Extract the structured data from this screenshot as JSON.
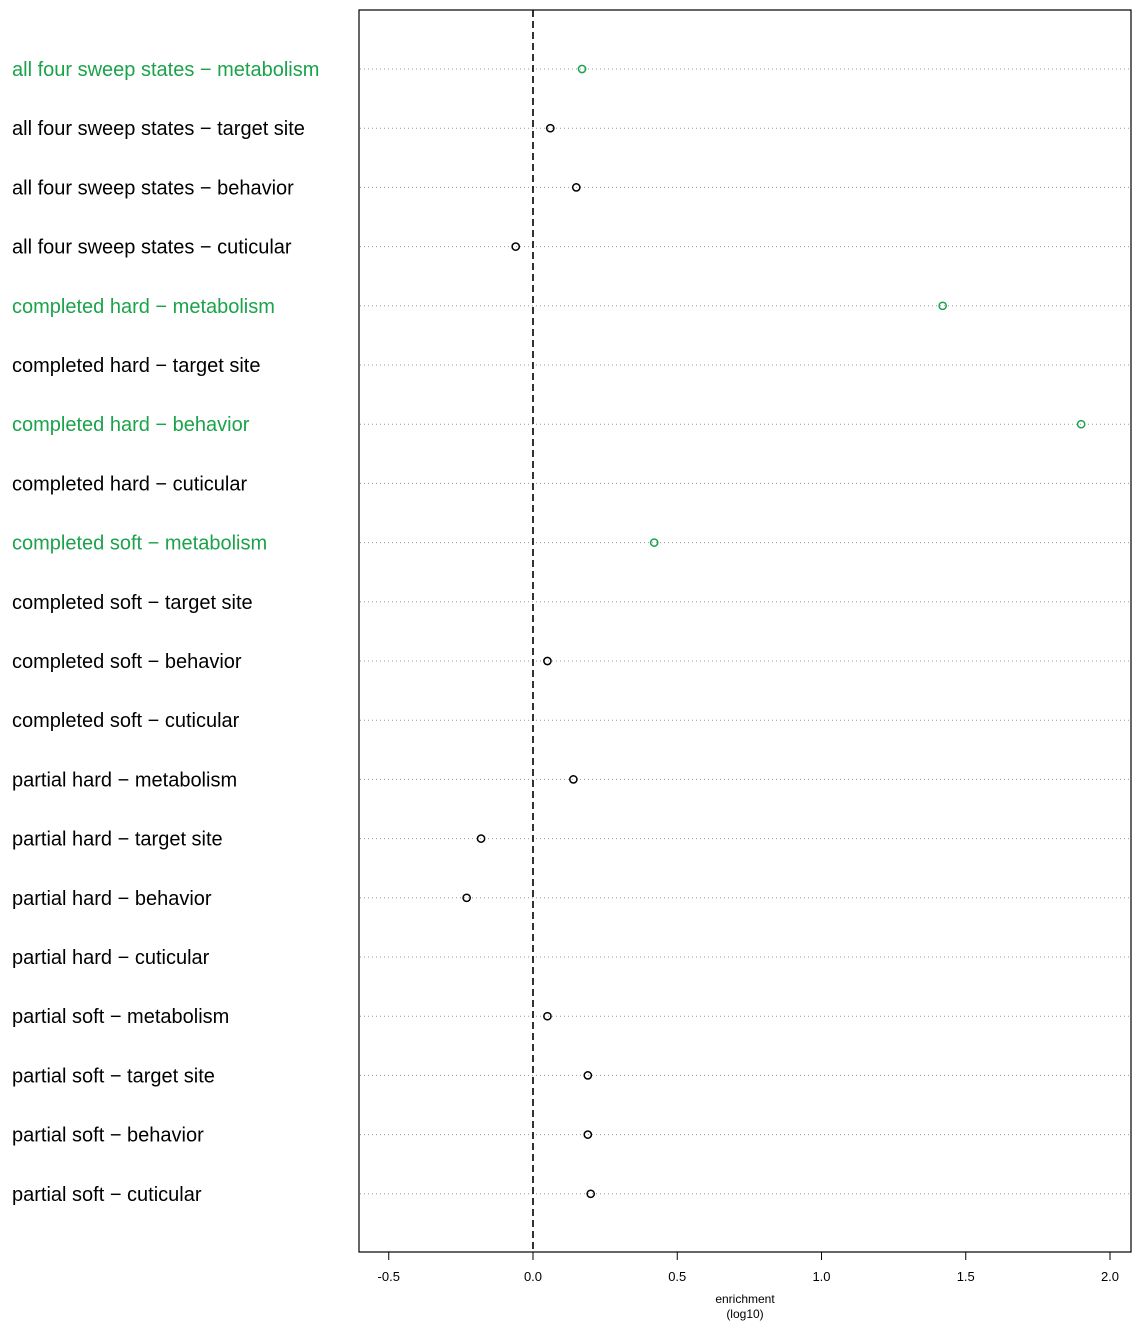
{
  "chart_data": {
    "type": "scatter",
    "title": "",
    "xlabel": "enrichment",
    "xlabel_sub": "(log10)",
    "ylabel": "",
    "xlim": [
      -0.6,
      2.08
    ],
    "xticks": [
      "-0.5",
      "0.0",
      "0.5",
      "1.0",
      "1.5",
      "2.0"
    ],
    "xtick_values": [
      -0.5,
      0.0,
      0.5,
      1.0,
      1.5,
      2.0
    ],
    "reference_line_x": 0.0,
    "grid": "horizontal dotted",
    "colors": {
      "highlight": "#1aa34a",
      "default": "#000000"
    },
    "rows": [
      {
        "label": "all four sweep states − metabolism",
        "x": 0.17,
        "highlight": true
      },
      {
        "label": "all four sweep states − target site",
        "x": 0.06,
        "highlight": false
      },
      {
        "label": "all four sweep states − behavior",
        "x": 0.15,
        "highlight": false
      },
      {
        "label": "all four sweep states − cuticular",
        "x": -0.06,
        "highlight": false
      },
      {
        "label": "completed hard − metabolism",
        "x": 1.42,
        "highlight": true
      },
      {
        "label": "completed hard − target site",
        "x": null,
        "highlight": false
      },
      {
        "label": "completed hard − behavior",
        "x": 1.9,
        "highlight": true
      },
      {
        "label": "completed hard − cuticular",
        "x": null,
        "highlight": false
      },
      {
        "label": "completed soft − metabolism",
        "x": 0.42,
        "highlight": true
      },
      {
        "label": "completed soft − target site",
        "x": null,
        "highlight": false
      },
      {
        "label": "completed soft − behavior",
        "x": 0.05,
        "highlight": false
      },
      {
        "label": "completed soft − cuticular",
        "x": null,
        "highlight": false
      },
      {
        "label": "partial hard − metabolism",
        "x": 0.14,
        "highlight": false
      },
      {
        "label": "partial hard − target site",
        "x": -0.18,
        "highlight": false
      },
      {
        "label": "partial hard − behavior",
        "x": -0.23,
        "highlight": false
      },
      {
        "label": "partial hard − cuticular",
        "x": null,
        "highlight": false
      },
      {
        "label": "partial soft − metabolism",
        "x": 0.05,
        "highlight": false
      },
      {
        "label": "partial soft − target site",
        "x": 0.19,
        "highlight": false
      },
      {
        "label": "partial soft − behavior",
        "x": 0.19,
        "highlight": false
      },
      {
        "label": "partial soft − cuticular",
        "x": 0.2,
        "highlight": false
      }
    ]
  }
}
